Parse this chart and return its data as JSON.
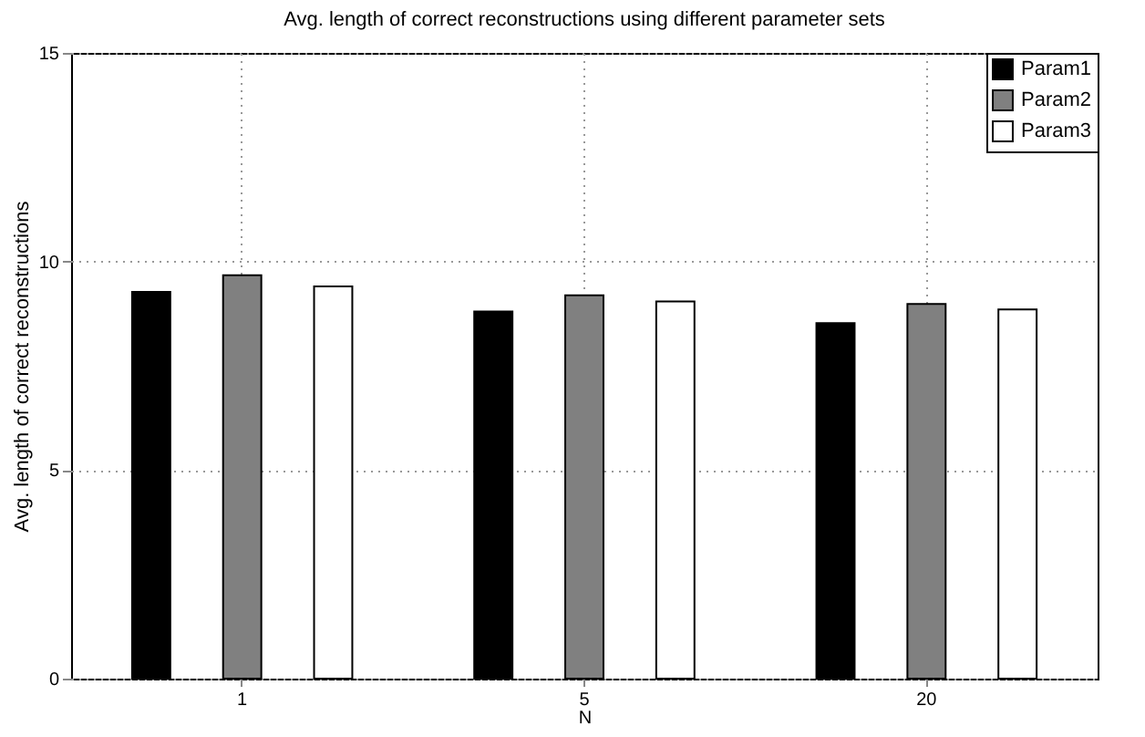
{
  "chart_data": {
    "type": "bar",
    "title": "Avg. length of correct reconstructions using different parameter sets",
    "xlabel": "N",
    "ylabel": "Avg. length of correct reconstructions",
    "categories": [
      "1",
      "5",
      "20"
    ],
    "series": [
      {
        "name": "Param1",
        "color": "#000000",
        "values": [
          9.27,
          8.8,
          8.52
        ]
      },
      {
        "name": "Param2",
        "color": "#808080",
        "values": [
          9.67,
          9.19,
          8.98
        ]
      },
      {
        "name": "Param3",
        "color": "#ffffff",
        "values": [
          9.4,
          9.04,
          8.85
        ]
      }
    ],
    "ylim": [
      0,
      15
    ],
    "yticks": [
      0,
      5,
      10,
      15
    ],
    "grid": true,
    "legend": "top right"
  }
}
